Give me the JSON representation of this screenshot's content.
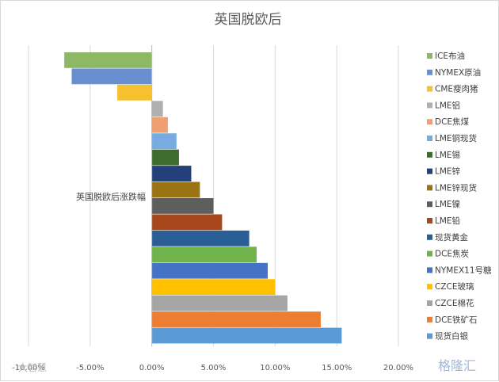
{
  "chart_data": {
    "type": "bar",
    "orientation": "horizontal",
    "title": "英国脱欧后",
    "category_label": "英国脱欧后涨跌幅",
    "xlim": [
      -0.1,
      0.2
    ],
    "x_ticks": [
      {
        "value": -0.1,
        "label": "-10.00%"
      },
      {
        "value": -0.05,
        "label": "-5.00%"
      },
      {
        "value": 0.0,
        "label": "0.00%"
      },
      {
        "value": 0.05,
        "label": "5.00%"
      },
      {
        "value": 0.1,
        "label": "10.00%"
      },
      {
        "value": 0.15,
        "label": "15.00%"
      },
      {
        "value": 0.2,
        "label": "20.00%"
      }
    ],
    "grid": true,
    "legend_position": "right",
    "series": [
      {
        "name": "ICE布油",
        "value": -0.071,
        "color": "#8DB864"
      },
      {
        "name": "NYMEX原油",
        "value": -0.065,
        "color": "#6A8FD0"
      },
      {
        "name": "CME瘦肉猪",
        "value": -0.028,
        "color": "#F5C12E"
      },
      {
        "name": "LME铝",
        "value": 0.009,
        "color": "#B0B0B0"
      },
      {
        "name": "DCE焦煤",
        "value": 0.013,
        "color": "#F0A070"
      },
      {
        "name": "LME铜现货",
        "value": 0.02,
        "color": "#76ACE0"
      },
      {
        "name": "LME锡",
        "value": 0.022,
        "color": "#3E6B2E"
      },
      {
        "name": "LME锌",
        "value": 0.032,
        "color": "#23407A"
      },
      {
        "name": "LME锌现货",
        "value": 0.039,
        "color": "#9A7312"
      },
      {
        "name": "LME镍",
        "value": 0.05,
        "color": "#5E5E5E"
      },
      {
        "name": "LME铅",
        "value": 0.057,
        "color": "#A8471B"
      },
      {
        "name": "现货黄金",
        "value": 0.079,
        "color": "#295E96"
      },
      {
        "name": "DCE焦炭",
        "value": 0.085,
        "color": "#70B24B"
      },
      {
        "name": "NYMEX11号糖",
        "value": 0.094,
        "color": "#4472C4"
      },
      {
        "name": "CZCE玻璃",
        "value": 0.1,
        "color": "#FFC000"
      },
      {
        "name": "CZCE棉花",
        "value": 0.11,
        "color": "#A5A5A5"
      },
      {
        "name": "DCE铁矿石",
        "value": 0.137,
        "color": "#ED7D31"
      },
      {
        "name": "现货白银",
        "value": 0.154,
        "color": "#5B9BD5"
      }
    ]
  },
  "watermarks": {
    "left": "大智慧",
    "right": "格隆汇"
  }
}
